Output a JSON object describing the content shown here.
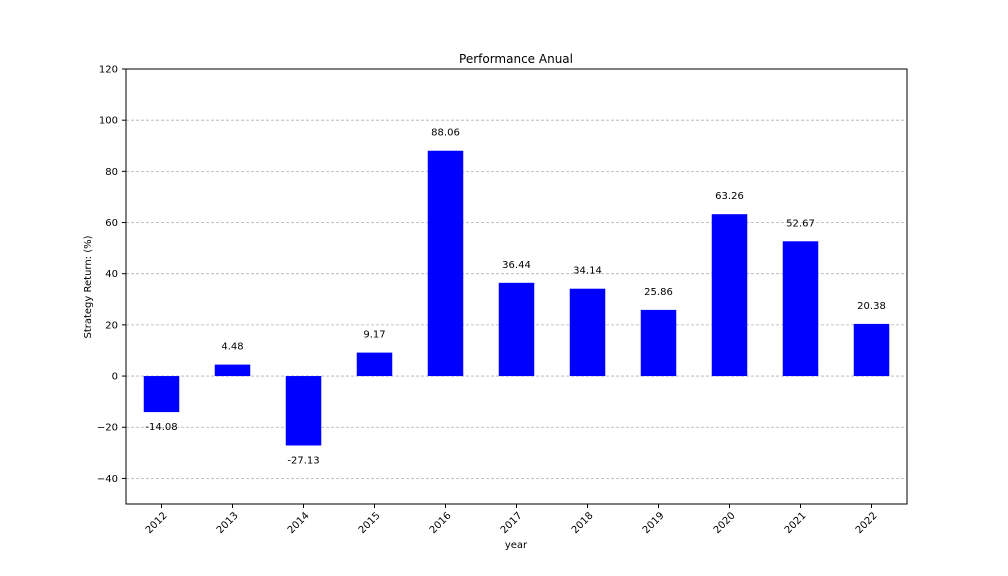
{
  "chart_data": {
    "type": "bar",
    "title": "Performance Anual",
    "xlabel": "year",
    "ylabel": "Strategy Return: (%)",
    "categories": [
      "2012",
      "2013",
      "2014",
      "2015",
      "2016",
      "2017",
      "2018",
      "2019",
      "2020",
      "2021",
      "2022"
    ],
    "values": [
      -14.08,
      4.48,
      -27.13,
      9.17,
      88.06,
      36.44,
      34.14,
      25.86,
      63.26,
      52.67,
      20.38
    ],
    "data_labels": [
      "-14.08",
      "4.48",
      "-27.13",
      "9.17",
      "88.06",
      "36.44",
      "34.14",
      "25.86",
      "63.26",
      "52.67",
      "20.38"
    ],
    "ylim": [
      -50,
      120
    ],
    "yticks": [
      -40,
      -20,
      0,
      20,
      40,
      60,
      80,
      100,
      120
    ],
    "ytick_labels": [
      "−40",
      "−20",
      "0",
      "20",
      "40",
      "60",
      "80",
      "100",
      "120"
    ],
    "grid": "y, dashed",
    "bar_color": "#0000ff",
    "legend": "none"
  }
}
